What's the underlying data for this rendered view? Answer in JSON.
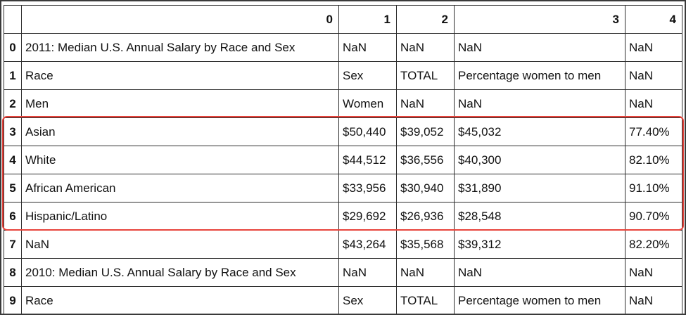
{
  "table": {
    "columns": [
      "",
      "0",
      "1",
      "2",
      "3",
      "4"
    ],
    "rows": [
      {
        "index": "0",
        "cells": [
          "2011: Median U.S. Annual Salary by Race and Sex",
          "NaN",
          "NaN",
          "NaN",
          "NaN"
        ]
      },
      {
        "index": "1",
        "cells": [
          "Race",
          "Sex",
          "TOTAL",
          "Percentage women to men",
          "NaN"
        ]
      },
      {
        "index": "2",
        "cells": [
          "Men",
          "Women",
          "NaN",
          "NaN",
          "NaN"
        ]
      },
      {
        "index": "3",
        "cells": [
          "Asian",
          "$50,440",
          "$39,052",
          "$45,032",
          "77.40%"
        ]
      },
      {
        "index": "4",
        "cells": [
          "White",
          "$44,512",
          "$36,556",
          "$40,300",
          "82.10%"
        ]
      },
      {
        "index": "5",
        "cells": [
          "African American",
          "$33,956",
          "$30,940",
          "$31,890",
          "91.10%"
        ]
      },
      {
        "index": "6",
        "cells": [
          "Hispanic/Latino",
          "$29,692",
          "$26,936",
          "$28,548",
          "90.70%"
        ]
      },
      {
        "index": "7",
        "cells": [
          "NaN",
          "$43,264",
          "$35,568",
          "$39,312",
          "82.20%"
        ]
      },
      {
        "index": "8",
        "cells": [
          "2010: Median U.S. Annual Salary by Race and Sex",
          "NaN",
          "NaN",
          "NaN",
          "NaN"
        ]
      },
      {
        "index": "9",
        "cells": [
          "Race",
          "Sex",
          "TOTAL",
          "Percentage women to men",
          "NaN"
        ]
      }
    ]
  },
  "highlight": {
    "rows": [
      "3",
      "4",
      "5",
      "6"
    ],
    "color": "#e8433b"
  }
}
